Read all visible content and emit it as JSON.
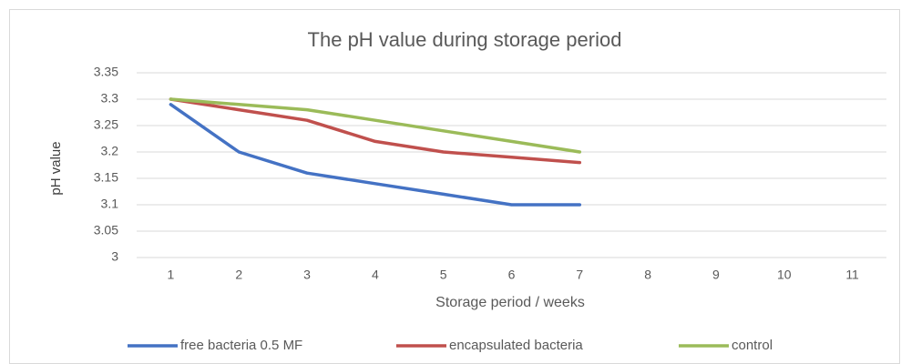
{
  "chart_data": {
    "type": "line",
    "title": "The pH value during storage period",
    "x_label": "Storage period / weeks",
    "y_label": "pH value",
    "categories": [
      1,
      2,
      3,
      4,
      5,
      6,
      7,
      8,
      9,
      10,
      11
    ],
    "series": [
      {
        "name": "free bacteria 0.5 MF",
        "color": "#4472c4",
        "values": [
          3.29,
          3.2,
          3.16,
          3.14,
          3.12,
          3.1,
          3.1,
          null,
          null,
          null,
          null
        ]
      },
      {
        "name": "encapsulated bacteria",
        "color": "#c0504d",
        "values": [
          3.3,
          3.28,
          3.26,
          3.22,
          3.2,
          3.19,
          3.18,
          null,
          null,
          null,
          null
        ]
      },
      {
        "name": "control",
        "color": "#9bbb59",
        "values": [
          3.3,
          3.29,
          3.28,
          3.26,
          3.24,
          3.22,
          3.2,
          null,
          null,
          null,
          null
        ]
      }
    ],
    "ylim": [
      3,
      3.35
    ],
    "yticks": [
      3,
      3.05,
      3.1,
      3.15,
      3.2,
      3.25,
      3.3,
      3.35
    ],
    "grid": true,
    "legend": "bottom"
  }
}
